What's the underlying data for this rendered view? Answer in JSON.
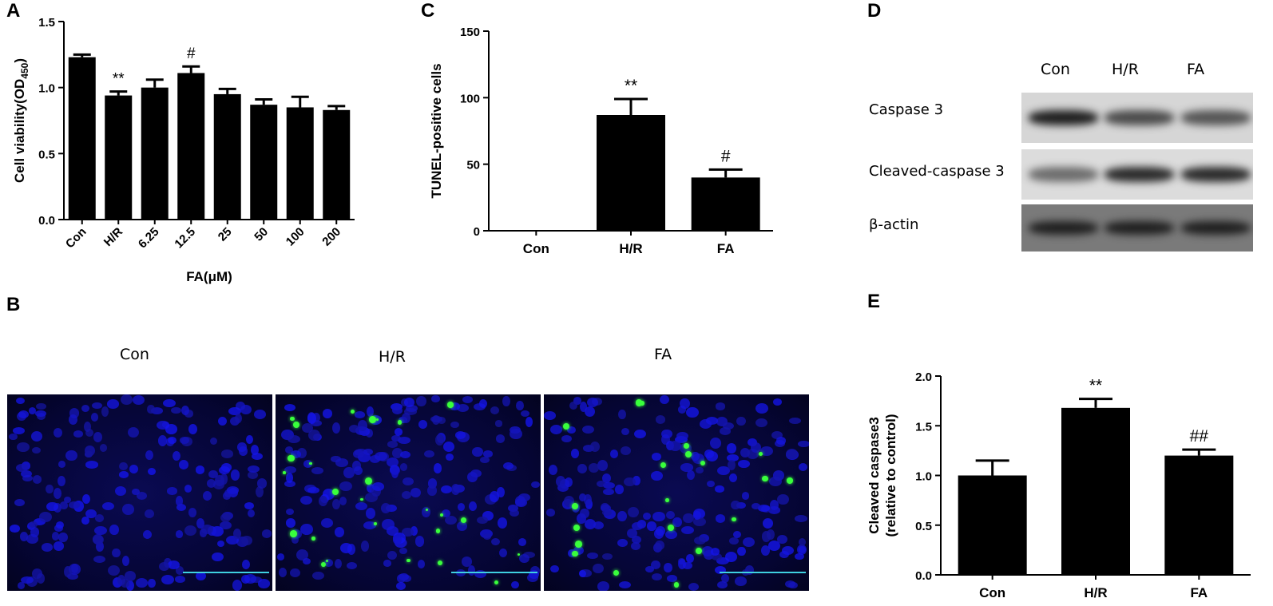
{
  "panels": {
    "A": "A",
    "B": "B",
    "C": "C",
    "D": "D",
    "E": "E"
  },
  "chart_data": [
    {
      "id": "A",
      "type": "bar",
      "categories": [
        "Con",
        "H/R",
        "6.25",
        "12.5",
        "25",
        "50",
        "100",
        "200"
      ],
      "values": [
        1.23,
        0.94,
        1.0,
        1.11,
        0.95,
        0.87,
        0.85,
        0.83
      ],
      "errors": [
        0.02,
        0.03,
        0.06,
        0.05,
        0.04,
        0.04,
        0.08,
        0.03
      ],
      "annotations": [
        "",
        "**",
        "",
        "#",
        "",
        "",
        "",
        ""
      ],
      "title": "",
      "xlabel": "FA(μM)",
      "ylabel": {
        "main": "Cell viability(OD",
        "sub": "450",
        "end": ")"
      },
      "ylim": [
        0,
        1.5
      ],
      "yticks": [
        "0.0",
        "0.5",
        "1.0",
        "1.5"
      ],
      "grid": false
    },
    {
      "id": "C",
      "type": "bar",
      "categories": [
        "Con",
        "H/R",
        "FA"
      ],
      "values": [
        0,
        87,
        40
      ],
      "errors": [
        0,
        12,
        6
      ],
      "annotations": [
        "",
        "**",
        "#"
      ],
      "title": "",
      "xlabel": "",
      "ylabel": "TUNEL-positive cells",
      "ylim": [
        0,
        150
      ],
      "yticks": [
        "0",
        "50",
        "100",
        "150"
      ],
      "grid": false
    },
    {
      "id": "E",
      "type": "bar",
      "categories": [
        "Con",
        "H/R",
        "FA"
      ],
      "values": [
        1.0,
        1.68,
        1.2
      ],
      "errors": [
        0.15,
        0.09,
        0.06
      ],
      "annotations": [
        "",
        "**",
        "##"
      ],
      "title": "",
      "xlabel": "",
      "ylabel": [
        "Cleaved caspase3",
        "(relative to control)"
      ],
      "ylim": [
        0,
        2.0
      ],
      "yticks": [
        "0.0",
        "0.5",
        "1.0",
        "1.5",
        "2.0"
      ],
      "grid": false
    }
  ],
  "microscopy": {
    "titles": [
      "Con",
      "H/R",
      "FA"
    ],
    "nucleus_color": "#1a1ad8",
    "tunel_color": "#39ff3c",
    "scale_bar_color": "#3fd0e0"
  },
  "western_blot": {
    "lanes": [
      "Con",
      "H/R",
      "FA"
    ],
    "rows": [
      {
        "label": "Caspase 3",
        "intensity": [
          0.95,
          0.75,
          0.7
        ]
      },
      {
        "label": "Cleaved-caspase 3",
        "intensity": [
          0.6,
          0.9,
          0.9
        ]
      },
      {
        "label": "β-actin",
        "intensity": [
          0.95,
          0.95,
          0.95
        ]
      }
    ]
  }
}
